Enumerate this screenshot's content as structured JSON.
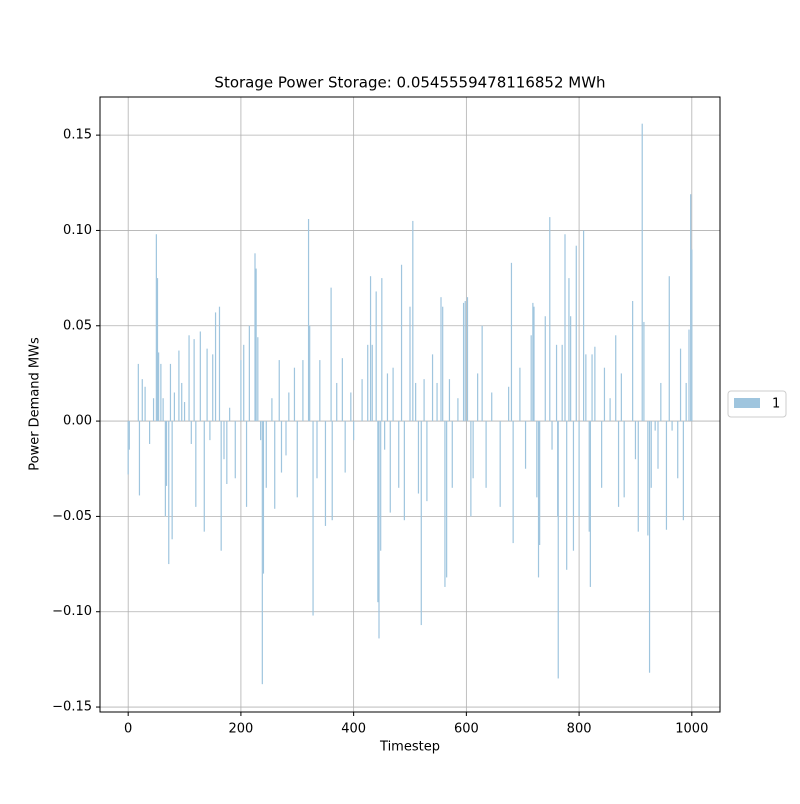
{
  "chart_data": {
    "type": "bar",
    "title": "Storage Power Storage: 0.0545559478116852 MWh",
    "xlabel": "Timestep",
    "ylabel": "Power Demand MWs",
    "x": [
      0,
      2,
      18,
      20,
      25,
      30,
      38,
      45,
      50,
      52,
      54,
      58,
      62,
      66,
      68,
      72,
      75,
      78,
      82,
      90,
      95,
      100,
      108,
      112,
      117,
      120,
      128,
      135,
      140,
      145,
      150,
      155,
      162,
      165,
      170,
      175,
      180,
      190,
      200,
      205,
      210,
      215,
      225,
      227,
      230,
      235,
      238,
      240,
      245,
      255,
      260,
      268,
      272,
      280,
      285,
      295,
      300,
      310,
      320,
      322,
      328,
      335,
      340,
      350,
      360,
      362,
      370,
      380,
      385,
      395,
      400,
      415,
      425,
      430,
      433,
      440,
      443,
      445,
      448,
      450,
      455,
      460,
      465,
      470,
      480,
      485,
      490,
      500,
      505,
      510,
      515,
      520,
      525,
      530,
      540,
      548,
      555,
      558,
      562,
      565,
      570,
      575,
      585,
      595,
      598,
      602,
      608,
      612,
      620,
      628,
      635,
      645,
      660,
      675,
      680,
      683,
      695,
      705,
      715,
      718,
      720,
      725,
      728,
      730,
      740,
      748,
      752,
      760,
      762,
      763,
      770,
      775,
      778,
      782,
      785,
      790,
      795,
      800,
      808,
      812,
      818,
      820,
      823,
      828,
      840,
      845,
      855,
      865,
      870,
      875,
      880,
      895,
      900,
      905,
      912,
      915,
      922,
      925,
      928,
      935,
      940,
      945,
      955,
      960,
      965,
      975,
      980,
      985,
      990,
      995,
      998,
      1000
    ],
    "series": [
      {
        "name": "1",
        "color": "#9fc5de",
        "values": [
          -0.028,
          -0.015,
          0.03,
          -0.039,
          0.022,
          0.018,
          -0.012,
          0.012,
          0.098,
          0.075,
          0.036,
          0.03,
          0.012,
          -0.05,
          -0.034,
          -0.075,
          0.03,
          -0.062,
          0.015,
          0.037,
          0.02,
          0.01,
          0.045,
          -0.012,
          0.043,
          -0.045,
          0.047,
          -0.058,
          0.038,
          -0.01,
          0.035,
          0.057,
          0.06,
          -0.068,
          -0.02,
          -0.033,
          0.007,
          -0.03,
          0.032,
          0.04,
          -0.045,
          0.05,
          0.088,
          0.08,
          0.044,
          -0.01,
          -0.138,
          -0.08,
          -0.035,
          0.012,
          -0.046,
          0.032,
          -0.027,
          -0.018,
          0.015,
          0.028,
          -0.04,
          0.032,
          0.106,
          0.05,
          -0.102,
          -0.03,
          0.032,
          -0.055,
          0.07,
          -0.052,
          0.02,
          0.033,
          -0.027,
          0.015,
          -0.01,
          0.022,
          0.04,
          0.076,
          0.04,
          0.068,
          -0.095,
          -0.114,
          -0.068,
          0.075,
          -0.015,
          0.025,
          -0.048,
          0.028,
          -0.035,
          0.082,
          -0.052,
          0.06,
          0.105,
          0.02,
          -0.038,
          -0.107,
          0.022,
          -0.042,
          0.035,
          0.02,
          0.065,
          0.06,
          -0.087,
          -0.082,
          0.022,
          -0.035,
          0.012,
          0.062,
          0.063,
          0.065,
          -0.05,
          -0.03,
          0.025,
          0.05,
          -0.035,
          0.015,
          -0.045,
          0.018,
          0.083,
          -0.064,
          0.028,
          -0.025,
          0.045,
          0.062,
          0.06,
          -0.04,
          -0.082,
          -0.065,
          0.055,
          0.107,
          -0.015,
          0.04,
          -0.05,
          -0.135,
          0.04,
          0.098,
          -0.078,
          0.075,
          0.055,
          -0.068,
          0.092,
          -0.05,
          0.1,
          0.035,
          -0.058,
          -0.087,
          0.035,
          0.039,
          -0.035,
          0.028,
          0.012,
          0.045,
          -0.045,
          0.025,
          -0.04,
          0.063,
          -0.02,
          -0.058,
          0.156,
          0.052,
          -0.06,
          -0.132,
          -0.035,
          -0.005,
          -0.025,
          0.02,
          -0.057,
          0.076,
          -0.005,
          -0.03,
          0.038,
          -0.052,
          0.02,
          0.048,
          0.119,
          0.09
        ]
      }
    ],
    "xlim": [
      -50,
      1050
    ],
    "ylim": [
      -0.1526,
      0.17
    ],
    "xticks": [
      0,
      200,
      400,
      600,
      800,
      1000
    ],
    "yticks": [
      {
        "value": -0.15,
        "label": "−0.15"
      },
      {
        "value": -0.1,
        "label": "−0.10"
      },
      {
        "value": -0.05,
        "label": "−0.05"
      },
      {
        "value": 0,
        "label": "0.00"
      },
      {
        "value": 0.05,
        "label": "0.05"
      },
      {
        "value": 0.1,
        "label": "0.10"
      },
      {
        "value": 0.15,
        "label": "0.15"
      }
    ],
    "grid": true,
    "legend": "center right outside"
  }
}
